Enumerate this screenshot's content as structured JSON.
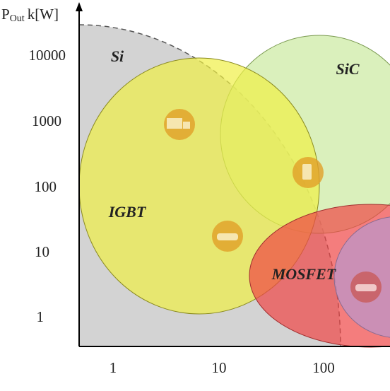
{
  "y_axis": {
    "label": {
      "symbol": "P",
      "subscript": "Out",
      "unit": "k[W]"
    },
    "ticks": [
      "10000",
      "1000",
      "100",
      "10",
      "1"
    ]
  },
  "x_axis": {
    "ticks": [
      "1",
      "10",
      "100"
    ]
  },
  "regions": {
    "si": "Si",
    "sic": "SiC",
    "igbt": "IGBT",
    "mosfet": "MOSFET"
  }
}
